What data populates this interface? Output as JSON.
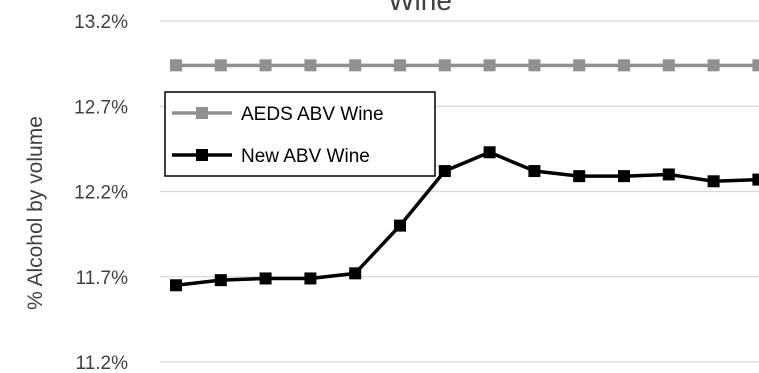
{
  "chart_data": {
    "type": "line",
    "title": "Wine",
    "xlabel": "",
    "ylabel": "% Alcohol by volume",
    "ylim": [
      11.2,
      13.2
    ],
    "yticks": [
      "11.2%",
      "11.7%",
      "12.2%",
      "12.7%",
      "13.2%"
    ],
    "grid": "horizontal",
    "legend_position": "top-left",
    "series": [
      {
        "name": "AEDS ABV Wine",
        "color": "#909090",
        "values": [
          12.94,
          12.94,
          12.94,
          12.94,
          12.94,
          12.94,
          12.94,
          12.94,
          12.94,
          12.94,
          12.94,
          12.94,
          12.94,
          12.94
        ]
      },
      {
        "name": "New ABV Wine",
        "color": "#000000",
        "values": [
          11.65,
          11.68,
          11.69,
          11.69,
          11.72,
          12.0,
          12.32,
          12.43,
          12.32,
          12.29,
          12.29,
          12.3,
          12.26,
          12.27
        ]
      }
    ]
  }
}
